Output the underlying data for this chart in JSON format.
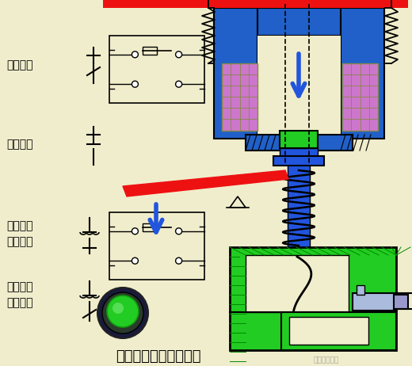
{
  "bg_color": "#f0edcc",
  "title": "断电延时型时间继电器",
  "title_fontsize": 13,
  "watermark": "精品课程专用",
  "colors": {
    "blue": "#2060c8",
    "blue_dark": "#1a3ec8",
    "blue_shaft": "#2255dd",
    "green": "#22cc22",
    "green_dark": "#119911",
    "purple": "#cc77cc",
    "red": "#ee1111",
    "black": "#111111",
    "white": "#ffffff",
    "light_blue": "#aabbdd",
    "light_purple": "#9999cc",
    "gray": "#888888",
    "bg": "#f0edcc"
  },
  "labels": {
    "instant_nc": "瞬动常闭",
    "instant_no": "瞬动常开",
    "delay_no": "延时断开\n常开触头",
    "delay_nc": "延时闭合\n常闭触头"
  }
}
